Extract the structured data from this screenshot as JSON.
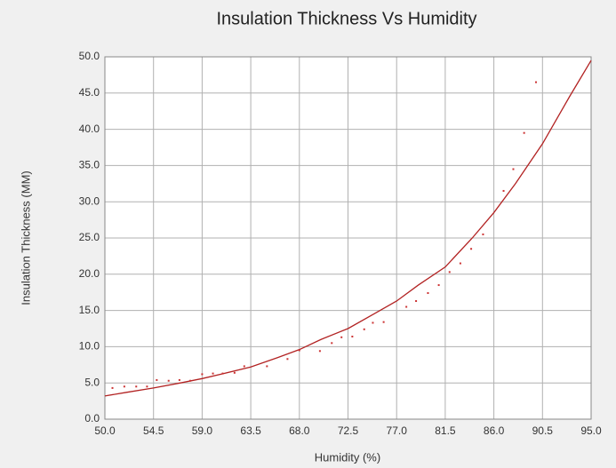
{
  "chart_data": {
    "type": "line",
    "title": "Insulation Thickness Vs Humidity",
    "x_label": "Humidity (%)",
    "y_label": "Insulation Thickness (MM)",
    "xlim": [
      50,
      95
    ],
    "ylim": [
      0,
      50
    ],
    "xticks": [
      {
        "value": 50,
        "label": "50.0"
      },
      54.5,
      {
        "value": 59,
        "label": "59.0"
      },
      63.5,
      {
        "value": 68,
        "label": "68.0"
      },
      72.5,
      {
        "value": 77,
        "label": "77.0"
      },
      81.5,
      {
        "value": 86,
        "label": "86.0"
      },
      90.5,
      {
        "value": 95,
        "label": "95.0"
      }
    ],
    "yticks": [
      {
        "value": 0,
        "label": "0.0"
      },
      {
        "value": 5,
        "label": "5.0"
      },
      {
        "value": 10,
        "label": "10.0"
      },
      {
        "value": 15,
        "label": "15.0"
      },
      {
        "value": 20,
        "label": "20.0"
      },
      {
        "value": 25,
        "label": "25.0"
      },
      {
        "value": 30,
        "label": "30.0"
      },
      {
        "value": 35,
        "label": "35.0"
      },
      {
        "value": 40,
        "label": "40.0"
      },
      {
        "value": 45,
        "label": "45.0"
      },
      {
        "value": 50,
        "label": "50.0"
      }
    ],
    "grid": true,
    "series": [
      {
        "type": "line",
        "color": "#b22222",
        "x": [
          50,
          52,
          54.5,
          57,
          59,
          61,
          63.5,
          66,
          68,
          70,
          72.5,
          75,
          77,
          79,
          81.5,
          84,
          86,
          88,
          90.5,
          93,
          95
        ],
        "values": [
          3.2,
          3.7,
          4.3,
          5.0,
          5.6,
          6.3,
          7.2,
          8.5,
          9.6,
          11.0,
          12.5,
          14.6,
          16.3,
          18.5,
          21.0,
          25.0,
          28.5,
          32.5,
          38.0,
          44.5,
          49.5
        ]
      },
      {
        "type": "scatter",
        "color": "#cc3333",
        "x": [
          50.7,
          51.8,
          52.9,
          53.9,
          54.8,
          55.9,
          56.9,
          57.9,
          59,
          60,
          60.9,
          62,
          62.9,
          65,
          66.9,
          68,
          69.9,
          71,
          71.9,
          72.9,
          74,
          74.8,
          75.8,
          77.9,
          78.8,
          79.9,
          80.9,
          81.9,
          82.9,
          83.9,
          85,
          86.9,
          87.8,
          88.8,
          89.9
        ],
        "values": [
          4.3,
          4.5,
          4.5,
          4.5,
          5.4,
          5.3,
          5.4,
          5.3,
          6.2,
          6.3,
          6.3,
          6.4,
          7.3,
          7.3,
          8.3,
          9.5,
          9.4,
          10.5,
          11.3,
          11.4,
          12.4,
          13.3,
          13.4,
          15.5,
          16.3,
          17.4,
          18.5,
          20.3,
          21.5,
          23.5,
          25.5,
          31.5,
          34.5,
          39.5,
          46.5
        ]
      }
    ]
  }
}
